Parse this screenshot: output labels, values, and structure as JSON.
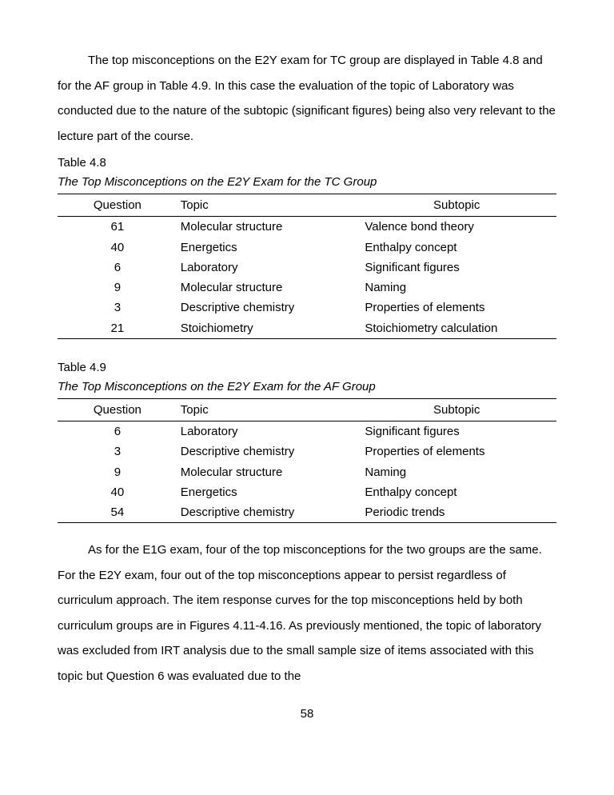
{
  "paragraph1": "The top misconceptions on the E2Y exam for TC group are displayed in Table 4.8 and for the AF group in Table 4.9. In this case the evaluation of the topic of Laboratory was conducted due to the nature of the subtopic (significant figures) being also very relevant to the lecture part of the course.",
  "table48": {
    "label": "Table 4.8",
    "caption": "The Top Misconceptions on the E2Y Exam for the TC Group",
    "headers": {
      "q": "Question",
      "t": "Topic",
      "s": "Subtopic"
    },
    "rows": [
      {
        "q": "61",
        "t": "Molecular structure",
        "s": "Valence bond theory"
      },
      {
        "q": "40",
        "t": "Energetics",
        "s": "Enthalpy concept"
      },
      {
        "q": "6",
        "t": "Laboratory",
        "s": "Significant figures"
      },
      {
        "q": "9",
        "t": "Molecular structure",
        "s": "Naming"
      },
      {
        "q": "3",
        "t": "Descriptive chemistry",
        "s": "Properties of elements"
      },
      {
        "q": "21",
        "t": "Stoichiometry",
        "s": "Stoichiometry calculation"
      }
    ]
  },
  "table49": {
    "label": "Table 4.9",
    "caption": "The Top Misconceptions on the E2Y Exam for the AF Group",
    "headers": {
      "q": "Question",
      "t": "Topic",
      "s": "Subtopic"
    },
    "rows": [
      {
        "q": "6",
        "t": "Laboratory",
        "s": "Significant figures"
      },
      {
        "q": "3",
        "t": "Descriptive chemistry",
        "s": "Properties of elements"
      },
      {
        "q": "9",
        "t": "Molecular structure",
        "s": "Naming"
      },
      {
        "q": "40",
        "t": "Energetics",
        "s": "Enthalpy concept"
      },
      {
        "q": "54",
        "t": "Descriptive chemistry",
        "s": "Periodic trends"
      }
    ]
  },
  "paragraph2": "As for the E1G exam, four of the top misconceptions for the two groups are the same. For the E2Y exam, four out of the top misconceptions appear to persist regardless of curriculum approach. The item response curves for the top misconceptions held by both curriculum groups are in Figures 4.11-4.16. As previously mentioned, the topic of laboratory was excluded from IRT analysis due to the small sample size of items associated with this topic but Question 6 was evaluated due to the",
  "pageNumber": "58"
}
